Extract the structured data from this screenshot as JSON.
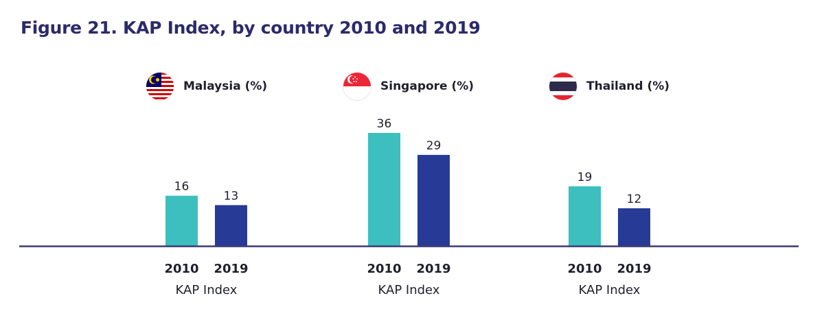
{
  "chart_data": {
    "type": "bar",
    "title": "Figure 21. KAP Index, by country 2010 and 2019",
    "xlabel": "KAP Index",
    "ylabel": "",
    "ylim": [
      0,
      36
    ],
    "grid": false,
    "legend_position": "top",
    "groups": [
      {
        "country": "Malaysia",
        "legend_label": "Malaysia (%)",
        "flag_icon": "malaysia-flag-icon",
        "categories": [
          "2010",
          "2019"
        ],
        "values": [
          16,
          13
        ],
        "group_label": "KAP Index"
      },
      {
        "country": "Singapore",
        "legend_label": "Singapore (%)",
        "flag_icon": "singapore-flag-icon",
        "categories": [
          "2010",
          "2019"
        ],
        "values": [
          36,
          29
        ],
        "group_label": "KAP Index"
      },
      {
        "country": "Thailand",
        "legend_label": "Thailand (%)",
        "flag_icon": "thailand-flag-icon",
        "categories": [
          "2010",
          "2019"
        ],
        "values": [
          19,
          12
        ],
        "group_label": "KAP Index"
      }
    ],
    "colors": {
      "2010": "#3dbfbf",
      "2019": "#263a96",
      "axis": "#3a3a72",
      "title": "#2b2a6b"
    }
  }
}
